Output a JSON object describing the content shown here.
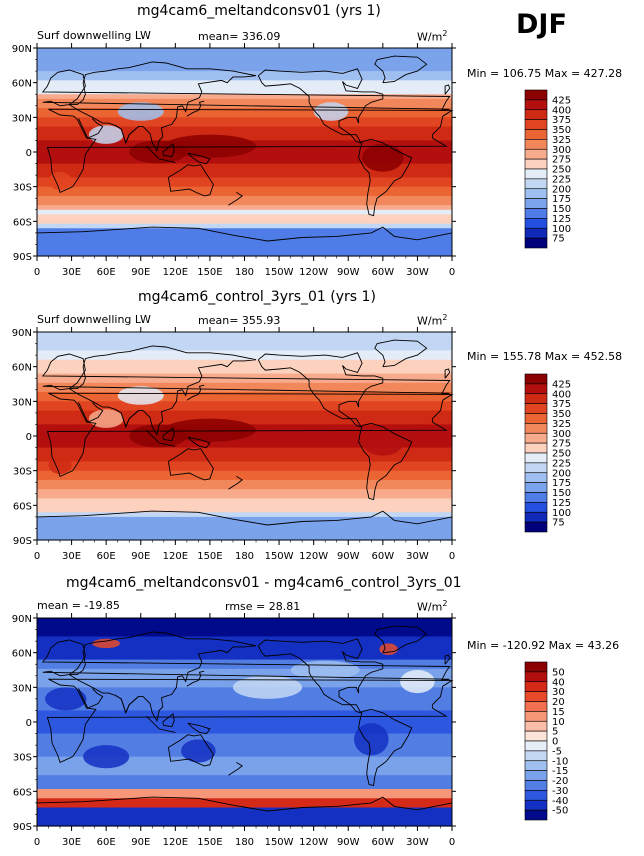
{
  "season": "DJF",
  "panels": [
    {
      "title": "mg4cam6_meltandconsv01 (yrs 1)",
      "left_label": "Surf downwelling LW",
      "center_label": "mean= 336.09",
      "units": "W/m",
      "units_exp": "2",
      "minmax": "Min = 106.75 Max = 427.28",
      "variant": "test",
      "levels": [
        "425",
        "400",
        "375",
        "350",
        "325",
        "300",
        "275",
        "250",
        "225",
        "200",
        "175",
        "150",
        "125",
        "100",
        "75"
      ],
      "colors": [
        "#8b0000",
        "#b30f0f",
        "#cf2a14",
        "#e04420",
        "#eb6433",
        "#f2875b",
        "#f7aa8c",
        "#fcd2be",
        "#e3ecf7",
        "#c2d7f3",
        "#9fbff0",
        "#7aa3eb",
        "#4f7ce6",
        "#2450e0",
        "#1029b8",
        "#00007a"
      ]
    },
    {
      "title": "mg4cam6_control_3yrs_01 (yrs 1)",
      "left_label": "Surf downwelling LW",
      "center_label": "mean= 355.93",
      "units": "W/m",
      "units_exp": "2",
      "minmax": "Min = 155.78 Max = 452.58",
      "variant": "ctrl",
      "levels": [
        "425",
        "400",
        "375",
        "350",
        "325",
        "300",
        "275",
        "250",
        "225",
        "200",
        "175",
        "150",
        "125",
        "100",
        "75"
      ],
      "colors": [
        "#8b0000",
        "#b30f0f",
        "#cf2a14",
        "#e04420",
        "#eb6433",
        "#f2875b",
        "#f7aa8c",
        "#fcd2be",
        "#e3ecf7",
        "#c2d7f3",
        "#9fbff0",
        "#7aa3eb",
        "#4f7ce6",
        "#2450e0",
        "#1029b8",
        "#00007a"
      ]
    },
    {
      "title": "mg4cam6_meltandconsv01 - mg4cam6_control_3yrs_01",
      "left_label": "mean = -19.85",
      "center_label": "rmse = 28.81",
      "units": "W/m",
      "units_exp": "2",
      "minmax": "Min = -120.92 Max =  43.26",
      "variant": "diff",
      "levels": [
        "50",
        "40",
        "30",
        "20",
        "15",
        "10",
        "5",
        "0",
        "-5",
        "-10",
        "-15",
        "-20",
        "-30",
        "-40",
        "-50"
      ],
      "colors": [
        "#8b0000",
        "#b30f0f",
        "#d62a18",
        "#e84a2a",
        "#f27050",
        "#f7977a",
        "#fbbda8",
        "#fde4d8",
        "#e6eef8",
        "#c4d8f4",
        "#a0c0f0",
        "#7aa2ea",
        "#527ee4",
        "#2d57de",
        "#1430c2",
        "#000a8a"
      ]
    }
  ],
  "lat_ticks": [
    "90N",
    "60N",
    "30N",
    "0",
    "30S",
    "60S",
    "90S"
  ],
  "lon_ticks": [
    "0",
    "30E",
    "60E",
    "90E",
    "120E",
    "150E",
    "180",
    "150W",
    "120W",
    "90W",
    "60W",
    "30W",
    "0"
  ]
}
